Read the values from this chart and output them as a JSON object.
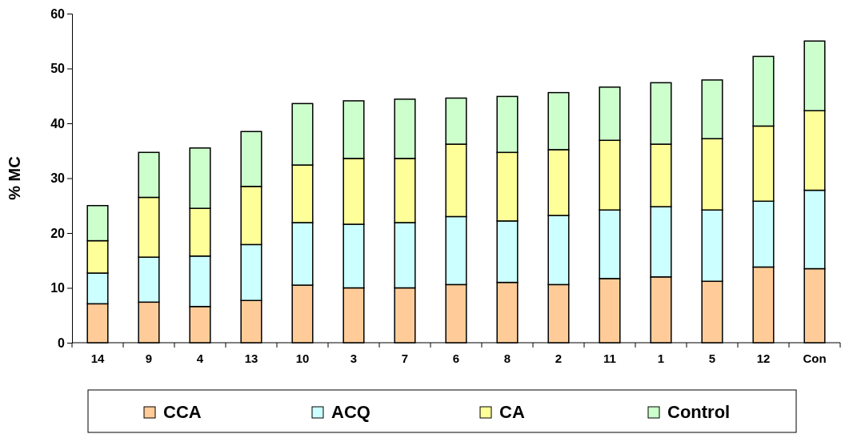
{
  "chart_data": {
    "type": "bar",
    "stacked": true,
    "ylabel": "% MC",
    "categories": [
      "14",
      "9",
      "4",
      "13",
      "10",
      "3",
      "7",
      "6",
      "8",
      "2",
      "11",
      "1",
      "5",
      "12",
      "Con"
    ],
    "series": [
      {
        "name": "CCA",
        "color": "#ffcc99",
        "values": [
          7.1,
          7.4,
          6.6,
          7.7,
          10.5,
          10.0,
          10.0,
          10.6,
          11.0,
          10.6,
          11.7,
          12.0,
          11.2,
          13.8,
          13.5
        ]
      },
      {
        "name": "ACQ",
        "color": "#ccffff",
        "values": [
          5.6,
          8.2,
          9.2,
          10.2,
          11.4,
          11.6,
          11.9,
          12.4,
          11.2,
          12.6,
          12.5,
          12.8,
          13.0,
          12.0,
          14.3
        ]
      },
      {
        "name": "CA",
        "color": "#ffff99",
        "values": [
          5.9,
          10.9,
          8.7,
          10.6,
          10.5,
          12.0,
          11.7,
          13.2,
          12.5,
          12.0,
          12.7,
          11.4,
          13.0,
          13.7,
          14.5
        ]
      },
      {
        "name": "Control",
        "color": "#ccffcc",
        "values": [
          6.4,
          8.2,
          11.0,
          10.0,
          11.2,
          10.5,
          10.8,
          8.4,
          10.2,
          10.4,
          9.7,
          11.2,
          10.7,
          12.7,
          12.7
        ]
      }
    ],
    "ylim": [
      0,
      60
    ],
    "yticks": [
      0,
      10,
      20,
      30,
      40,
      50,
      60
    ],
    "grid": false,
    "legend": "bottom"
  }
}
